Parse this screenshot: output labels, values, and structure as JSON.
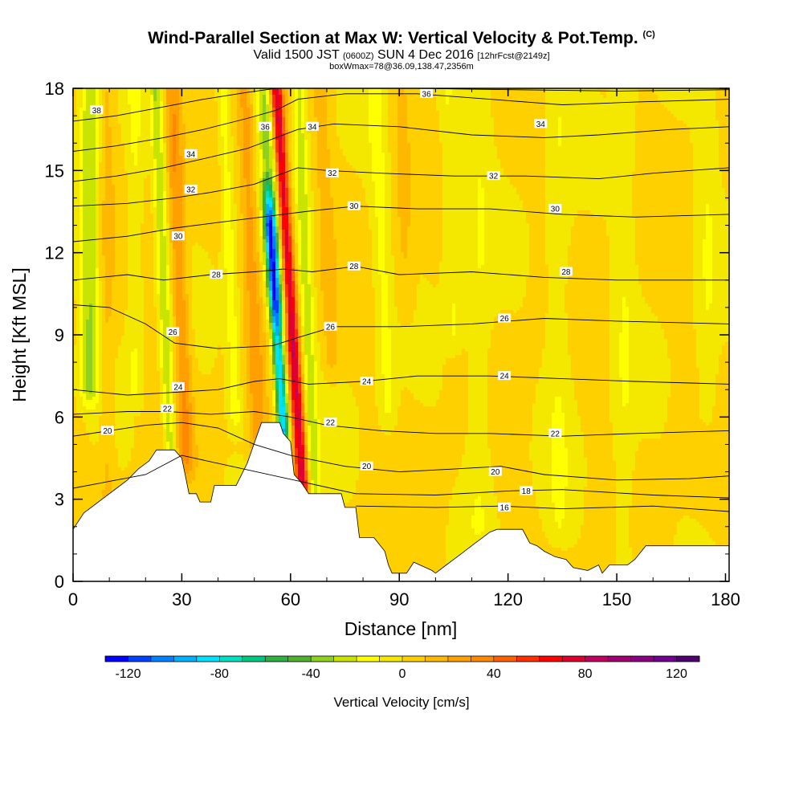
{
  "header": {
    "title": "Wind-Parallel Section at Max W: Vertical Velocity & Pot.Temp.",
    "copyright": "(C)",
    "valid_prefix": "Valid 1500 JST",
    "valid_utc": "(0600Z)",
    "valid_date": "SUN 4 Dec 2016",
    "forecast_info": "[12hrFcst@2149z]",
    "box_info": "boxWmax=78@36.09,138.47,2356m"
  },
  "chart_data": {
    "type": "heatmap",
    "xlabel": "Distance [nm]",
    "ylabel": "Height [Kft MSL]",
    "xlim": [
      0,
      181
    ],
    "ylim": [
      0,
      18
    ],
    "x_ticks": [
      0,
      30,
      60,
      90,
      120,
      150,
      180
    ],
    "y_ticks": [
      0,
      3,
      6,
      9,
      12,
      15,
      18
    ],
    "colorbar": {
      "title": "Vertical Velocity [cm/s]",
      "range": [
        -130,
        130
      ],
      "step": 10,
      "tick_values": [
        -120,
        -80,
        -40,
        0,
        40,
        80,
        120
      ],
      "tick_labels": [
        "-120",
        "-80",
        "-40",
        "0",
        "40",
        "80",
        "120"
      ],
      "colors": [
        "#0000ff",
        "#0040ff",
        "#0080ff",
        "#00b0ff",
        "#00e0ff",
        "#00e0c0",
        "#00c880",
        "#30b040",
        "#50b030",
        "#90d020",
        "#c8e400",
        "#ffff00",
        "#f4e800",
        "#ffd000",
        "#ffb800",
        "#ffa000",
        "#ff8800",
        "#ff6000",
        "#ff3000",
        "#ff0000",
        "#e00030",
        "#c00060",
        "#a00070",
        "#8a0080",
        "#700090",
        "#500070"
      ]
    },
    "velocity_features": [
      {
        "x": 60.5,
        "amp": 78,
        "width": 1.8,
        "y_min": 2.0,
        "tilt": 0.5
      },
      {
        "x": 56.2,
        "amp": -95,
        "width": 1.6,
        "y_min": 5.5,
        "y_max": 13.0,
        "tilt": 0.5
      },
      {
        "x": 57.0,
        "amp": -35,
        "width": 2.4,
        "y_min": 10.0,
        "tilt": 0.5
      },
      {
        "x": 64.8,
        "amp": -28,
        "width": 1.8,
        "y_min": 3.0,
        "tilt": 0.3
      },
      {
        "x": 50.0,
        "amp": 22,
        "width": 2.2,
        "y_min": 5.0,
        "tilt": 0.3
      },
      {
        "x": 44.0,
        "amp": -18,
        "width": 1.8,
        "y_min": 6.0,
        "tilt": 0.3
      },
      {
        "x": 30.0,
        "amp": 28,
        "width": 2.2,
        "y_min": 4.5,
        "tilt": 0.3
      },
      {
        "x": 25.5,
        "amp": -30,
        "width": 1.6,
        "y_min": 4.5,
        "tilt": 0.3
      },
      {
        "x": 4.5,
        "amp": -32,
        "width": 2.4,
        "y_min": 7.0,
        "tilt": 0.0
      },
      {
        "x": 9.5,
        "amp": 10,
        "width": 1.8,
        "y_min": 3.0,
        "tilt": 0.0
      },
      {
        "x": 17.0,
        "amp": -12,
        "width": 2.2,
        "y_min": 7.0,
        "tilt": 0.0
      },
      {
        "x": 71.0,
        "amp": 14,
        "width": 2.0,
        "y_min": 8.0,
        "tilt": 0.3
      },
      {
        "x": 86.0,
        "amp": -14,
        "width": 2.4,
        "y_min": 6.0,
        "tilt": 0.3
      },
      {
        "x": 92.0,
        "amp": 10,
        "width": 2.5,
        "y_min": 10.0,
        "tilt": 0.2
      },
      {
        "x": 105.0,
        "amp": -12,
        "width": 2.5,
        "y_min": 9.0,
        "tilt": 0.2
      },
      {
        "x": 112.0,
        "amp": -10,
        "width": 3.5,
        "y_min": 2.0,
        "tilt": 0.0
      },
      {
        "x": 134.0,
        "amp": -10,
        "width": 3.5,
        "y_min": 2.0,
        "tilt": 0.0
      },
      {
        "x": 152.0,
        "amp": -10,
        "width": 3.0,
        "y_min": 0.5,
        "tilt": 0.0
      },
      {
        "x": 175.0,
        "amp": -10,
        "width": 3.0,
        "y_min": 6.0,
        "tilt": 0.0
      }
    ],
    "terrain_kft": [
      [
        0,
        1.9
      ],
      [
        3,
        2.5
      ],
      [
        6,
        2.8
      ],
      [
        9,
        3.1
      ],
      [
        12,
        3.4
      ],
      [
        15,
        3.7
      ],
      [
        18,
        4.1
      ],
      [
        21,
        4.4
      ],
      [
        23,
        4.8
      ],
      [
        28,
        4.8
      ],
      [
        30,
        4.5
      ],
      [
        32,
        3.2
      ],
      [
        34,
        3.2
      ],
      [
        35,
        2.9
      ],
      [
        38,
        2.9
      ],
      [
        39,
        3.5
      ],
      [
        45,
        3.5
      ],
      [
        48,
        4.3
      ],
      [
        52,
        5.8
      ],
      [
        57,
        5.8
      ],
      [
        58,
        5.4
      ],
      [
        60,
        5.1
      ],
      [
        61,
        3.9
      ],
      [
        63,
        3.6
      ],
      [
        65,
        3.2
      ],
      [
        74,
        3.2
      ],
      [
        75,
        2.7
      ],
      [
        78,
        2.7
      ],
      [
        79,
        1.6
      ],
      [
        83,
        1.6
      ],
      [
        86,
        1.1
      ],
      [
        87,
        0.6
      ],
      [
        88,
        0.3
      ],
      [
        92,
        0.3
      ],
      [
        94,
        0.7
      ],
      [
        99,
        0.4
      ],
      [
        100,
        0.3
      ],
      [
        103,
        0.6
      ],
      [
        105,
        0.8
      ],
      [
        107,
        1.0
      ],
      [
        109,
        1.2
      ],
      [
        111,
        1.4
      ],
      [
        113,
        1.6
      ],
      [
        115,
        1.8
      ],
      [
        117,
        1.9
      ],
      [
        124,
        1.9
      ],
      [
        126,
        1.4
      ],
      [
        128,
        1.3
      ],
      [
        130,
        1.1
      ],
      [
        133,
        0.9
      ],
      [
        136,
        0.8
      ],
      [
        138,
        0.5
      ],
      [
        142,
        0.4
      ],
      [
        145,
        0.6
      ],
      [
        146,
        0.3
      ],
      [
        148,
        0.6
      ],
      [
        153,
        0.6
      ],
      [
        155,
        0.8
      ],
      [
        158,
        1.3
      ],
      [
        181,
        1.3
      ]
    ],
    "theta_isolines": [
      {
        "label": "16",
        "points": [
          [
            78,
            2.75
          ],
          [
            100,
            2.7
          ],
          [
            118,
            2.75
          ],
          [
            135,
            2.65
          ],
          [
            160,
            2.75
          ],
          [
            181,
            2.55
          ]
        ]
      },
      {
        "label": "18",
        "points": [
          [
            0,
            3.4
          ],
          [
            20,
            3.9
          ],
          [
            30,
            4.6
          ],
          [
            78,
            3.2
          ],
          [
            100,
            3.15
          ],
          [
            120,
            3.3
          ],
          [
            135,
            3.35
          ],
          [
            160,
            3.15
          ],
          [
            181,
            3.05
          ]
        ]
      },
      {
        "label": "20",
        "points": [
          [
            0,
            5.3
          ],
          [
            10,
            5.5
          ],
          [
            20,
            5.7
          ],
          [
            30,
            5.8
          ],
          [
            40,
            5.6
          ],
          [
            50,
            5.0
          ],
          [
            60,
            4.6
          ],
          [
            75,
            4.2
          ],
          [
            90,
            4.0
          ],
          [
            105,
            4.1
          ],
          [
            118,
            4.2
          ],
          [
            130,
            3.9
          ],
          [
            150,
            3.7
          ],
          [
            170,
            3.75
          ],
          [
            181,
            3.85
          ]
        ]
      },
      {
        "label": "22",
        "points": [
          [
            0,
            6.1
          ],
          [
            15,
            6.2
          ],
          [
            26,
            6.2
          ],
          [
            38,
            6.1
          ],
          [
            50,
            6.2
          ],
          [
            60,
            6.0
          ],
          [
            70,
            5.7
          ],
          [
            85,
            5.5
          ],
          [
            100,
            5.4
          ],
          [
            115,
            5.4
          ],
          [
            135,
            5.3
          ],
          [
            155,
            5.4
          ],
          [
            181,
            5.5
          ]
        ]
      },
      {
        "label": "24",
        "points": [
          [
            0,
            7.0
          ],
          [
            15,
            6.8
          ],
          [
            28,
            6.9
          ],
          [
            40,
            7.0
          ],
          [
            50,
            7.3
          ],
          [
            57,
            7.4
          ],
          [
            65,
            7.2
          ],
          [
            80,
            7.3
          ],
          [
            95,
            7.5
          ],
          [
            115,
            7.5
          ],
          [
            135,
            7.4
          ],
          [
            155,
            7.3
          ],
          [
            181,
            7.2
          ]
        ]
      },
      {
        "label": "26",
        "points": [
          [
            0,
            10.1
          ],
          [
            10,
            10.0
          ],
          [
            20,
            9.4
          ],
          [
            28,
            8.7
          ],
          [
            40,
            8.5
          ],
          [
            55,
            8.6
          ],
          [
            62,
            8.9
          ],
          [
            72,
            9.3
          ],
          [
            90,
            9.3
          ],
          [
            110,
            9.4
          ],
          [
            130,
            9.6
          ],
          [
            150,
            9.5
          ],
          [
            181,
            9.4
          ]
        ]
      },
      {
        "label": "28",
        "points": [
          [
            0,
            11.0
          ],
          [
            15,
            11.2
          ],
          [
            25,
            11.0
          ],
          [
            38,
            11.2
          ],
          [
            50,
            11.3
          ],
          [
            58,
            11.4
          ],
          [
            66,
            11.3
          ],
          [
            78,
            11.5
          ],
          [
            90,
            11.2
          ],
          [
            110,
            11.3
          ],
          [
            130,
            11.1
          ],
          [
            150,
            11.0
          ],
          [
            181,
            11.0
          ]
        ]
      },
      {
        "label": "30",
        "points": [
          [
            0,
            12.4
          ],
          [
            15,
            12.6
          ],
          [
            28,
            12.9
          ],
          [
            40,
            13.1
          ],
          [
            52,
            13.3
          ],
          [
            58,
            13.4
          ],
          [
            64,
            13.5
          ],
          [
            78,
            13.7
          ],
          [
            95,
            13.6
          ],
          [
            115,
            13.6
          ],
          [
            135,
            13.4
          ],
          [
            155,
            13.3
          ],
          [
            181,
            13.4
          ]
        ]
      },
      {
        "label": "32",
        "points": [
          [
            0,
            13.7
          ],
          [
            15,
            13.8
          ],
          [
            28,
            14.0
          ],
          [
            38,
            14.2
          ],
          [
            50,
            14.5
          ],
          [
            58,
            14.9
          ],
          [
            62,
            15.1
          ],
          [
            70,
            15.0
          ],
          [
            85,
            14.9
          ],
          [
            105,
            14.8
          ],
          [
            125,
            14.8
          ],
          [
            145,
            14.7
          ],
          [
            160,
            14.9
          ],
          [
            181,
            15.1
          ]
        ]
      },
      {
        "label": "34",
        "points": [
          [
            0,
            14.6
          ],
          [
            12,
            14.8
          ],
          [
            25,
            15.1
          ],
          [
            35,
            15.4
          ],
          [
            48,
            15.8
          ],
          [
            56,
            16.2
          ],
          [
            62,
            16.5
          ],
          [
            72,
            16.7
          ],
          [
            90,
            16.6
          ],
          [
            110,
            16.3
          ],
          [
            130,
            16.2
          ],
          [
            145,
            16.3
          ],
          [
            165,
            16.5
          ],
          [
            181,
            16.6
          ]
        ]
      },
      {
        "label": "36",
        "points": [
          [
            0,
            15.7
          ],
          [
            12,
            15.9
          ],
          [
            25,
            16.2
          ],
          [
            36,
            16.5
          ],
          [
            48,
            16.9
          ],
          [
            56,
            17.2
          ],
          [
            62,
            17.6
          ],
          [
            75,
            17.8
          ],
          [
            95,
            17.8
          ],
          [
            115,
            17.6
          ],
          [
            135,
            17.4
          ],
          [
            155,
            17.5
          ],
          [
            181,
            17.6
          ]
        ]
      },
      {
        "label": "38",
        "points": [
          [
            0,
            16.8
          ],
          [
            12,
            17.0
          ],
          [
            24,
            17.3
          ],
          [
            36,
            17.6
          ],
          [
            48,
            17.85
          ],
          [
            56,
            18.0
          ]
        ]
      },
      {
        "label": "",
        "points": [
          [
            70,
            18.0
          ],
          [
            95,
            18.0
          ],
          [
            120,
            17.95
          ],
          [
            150,
            17.9
          ],
          [
            181,
            17.95
          ]
        ]
      }
    ],
    "contour_labels": [
      {
        "text": "38",
        "x": 6.5,
        "y": 17.2
      },
      {
        "text": "36",
        "x": 53.0,
        "y": 16.6
      },
      {
        "text": "36",
        "x": 97.5,
        "y": 17.8
      },
      {
        "text": "34",
        "x": 32.5,
        "y": 15.6
      },
      {
        "text": "34",
        "x": 66.0,
        "y": 16.6
      },
      {
        "text": "34",
        "x": 129.0,
        "y": 16.7
      },
      {
        "text": "32",
        "x": 32.5,
        "y": 14.3
      },
      {
        "text": "32",
        "x": 71.5,
        "y": 14.9
      },
      {
        "text": "32",
        "x": 116.0,
        "y": 14.8
      },
      {
        "text": "30",
        "x": 29.0,
        "y": 12.6
      },
      {
        "text": "30",
        "x": 77.5,
        "y": 13.7
      },
      {
        "text": "30",
        "x": 133.0,
        "y": 13.6
      },
      {
        "text": "28",
        "x": 39.5,
        "y": 11.2
      },
      {
        "text": "28",
        "x": 77.5,
        "y": 11.5
      },
      {
        "text": "28",
        "x": 136.0,
        "y": 11.3
      },
      {
        "text": "26",
        "x": 27.5,
        "y": 9.1
      },
      {
        "text": "26",
        "x": 71.0,
        "y": 9.3
      },
      {
        "text": "26",
        "x": 119.0,
        "y": 9.6
      },
      {
        "text": "24",
        "x": 29.0,
        "y": 7.1
      },
      {
        "text": "24",
        "x": 81.0,
        "y": 7.3
      },
      {
        "text": "24",
        "x": 119.0,
        "y": 7.5
      },
      {
        "text": "22",
        "x": 26.0,
        "y": 6.3
      },
      {
        "text": "22",
        "x": 71.0,
        "y": 5.8
      },
      {
        "text": "22",
        "x": 133.0,
        "y": 5.4
      },
      {
        "text": "20",
        "x": 9.5,
        "y": 5.5
      },
      {
        "text": "20",
        "x": 81.0,
        "y": 4.2
      },
      {
        "text": "20",
        "x": 116.5,
        "y": 4.0
      },
      {
        "text": "18",
        "x": 125.0,
        "y": 3.3
      },
      {
        "text": "16",
        "x": 119.0,
        "y": 2.7
      }
    ]
  }
}
